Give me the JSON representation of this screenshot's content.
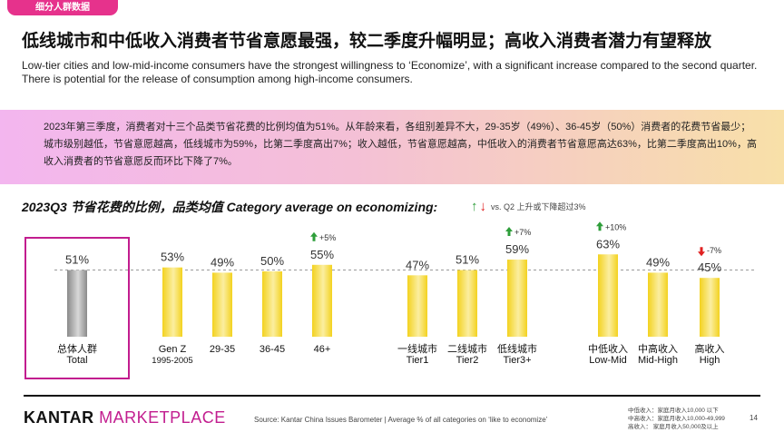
{
  "header": {
    "tag": "细分人群数据",
    "title": "低线城市和中低收入消费者节省意愿最强，较二季度升幅明显；高收入消费者潜力有望释放",
    "subtitle": "Low-tier cities and low-mid-income consumers have the strongest willingness to ‘Economize’, with a significant increase compared to the second quarter. There is potential for the release of consumption among high-income consumers."
  },
  "summary": "2023年第三季度，消费者对十三个品类节省花费的比例均值为51%。从年龄来看，各组别差异不大，29-35岁（49%）、36-45岁（50%）消费者的花费节省最少；城市级别越低，节省意愿越高，低线城市为59%，比第二季度高出7%；收入越低，节省意愿越高，中低收入的消费者节省意愿高达63%，比第二季度高出10%，高收入消费者的节省意愿反而环比下降了7%。",
  "chart_title": "2023Q3 节省花费的比例，品类均值 Category average on economizing:",
  "legend": {
    "up": "↑",
    "down": "↓",
    "text": "vs. Q2 上升或下降超过3%"
  },
  "chart_data": {
    "type": "bar",
    "title": "2023Q3 节省花费的比例，品类均值 Category average on economizing",
    "ylim": [
      0,
      100
    ],
    "reference_line": 51,
    "groups": [
      {
        "name": "total",
        "bars": [
          {
            "label": [
              "总体人群",
              "Total"
            ],
            "value": 51,
            "label_text": "51%",
            "change": null,
            "change_text": "",
            "highlight": true
          }
        ]
      },
      {
        "name": "age",
        "bars": [
          {
            "label": [
              "Gen Z",
              "1995-2005"
            ],
            "value": 53,
            "label_text": "53%",
            "change": null,
            "change_text": ""
          },
          {
            "label": [
              "29-35"
            ],
            "value": 49,
            "label_text": "49%",
            "change": null,
            "change_text": ""
          },
          {
            "label": [
              "36-45"
            ],
            "value": 50,
            "label_text": "50%",
            "change": null,
            "change_text": ""
          },
          {
            "label": [
              "46+"
            ],
            "value": 55,
            "label_text": "55%",
            "change": "up",
            "change_text": "+5%"
          }
        ]
      },
      {
        "name": "city",
        "bars": [
          {
            "label": [
              "一线城市",
              "Tier1"
            ],
            "value": 47,
            "label_text": "47%",
            "change": null,
            "change_text": ""
          },
          {
            "label": [
              "二线城市",
              "Tier2"
            ],
            "value": 51,
            "label_text": "51%",
            "change": null,
            "change_text": ""
          },
          {
            "label": [
              "低线城市",
              "Tier3+"
            ],
            "value": 59,
            "label_text": "59%",
            "change": "up",
            "change_text": "+7%"
          }
        ]
      },
      {
        "name": "income",
        "bars": [
          {
            "label": [
              "中低收入",
              "Low-Mid"
            ],
            "value": 63,
            "label_text": "63%",
            "change": "up",
            "change_text": "+10%"
          },
          {
            "label": [
              "中高收入",
              "Mid-High"
            ],
            "value": 49,
            "label_text": "49%",
            "change": null,
            "change_text": ""
          },
          {
            "label": [
              "高收入",
              "High"
            ],
            "value": 45,
            "label_text": "45%",
            "change": "down",
            "change_text": "-7%"
          }
        ]
      }
    ],
    "colors": {
      "gold": "#f3d21f",
      "gold_light": "#fbeea0",
      "gray_dark": "#8a8a8a",
      "gray_light": "#d8d8d8",
      "up": "#2e9e3a",
      "down": "#e02020",
      "highlight_box": "#c21d8f"
    }
  },
  "footer": {
    "brand_k": "KANTAR",
    "brand_m": "MARKETPLACE",
    "source": "Source:  Kantar China Issues Barometer | Average % of all categories on ‘like to economize’",
    "notes": [
      "中低收入：家庭月收入10,000 以下",
      "中高收入：家庭月收入10,000-49,999",
      "高收入：  家庭月收入50,000及以上"
    ],
    "page": "14"
  }
}
